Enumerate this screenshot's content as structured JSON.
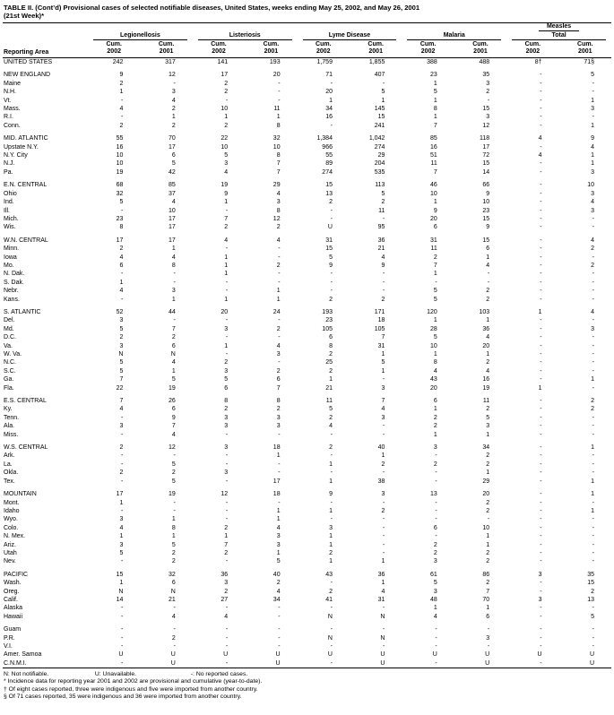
{
  "title": {
    "line1": "TABLE II. (Cont’d) Provisional cases of selected notifiable diseases, United States, weeks ending May 25, 2002, and May 26, 2001",
    "line2": "(21st Week)*"
  },
  "table": {
    "area_header": "Reporting Area",
    "groups": [
      {
        "lines": [
          "Legionellosis"
        ]
      },
      {
        "lines": [
          "Listeriosis"
        ]
      },
      {
        "lines": [
          "Lyme Disease"
        ]
      },
      {
        "lines": [
          "Malaria"
        ]
      },
      {
        "lines": [
          "Measles",
          "Total"
        ]
      }
    ],
    "col_subheader": {
      "line1": "Cum.",
      "years": [
        "2002",
        "2001"
      ]
    },
    "rows": [
      {
        "area": "UNITED STATES",
        "v": [
          "242",
          "317",
          "141",
          "193",
          "1,759",
          "1,855",
          "388",
          "488",
          "8†",
          "71§"
        ]
      },
      {
        "spacer": true
      },
      {
        "area": "NEW ENGLAND",
        "v": [
          "9",
          "12",
          "17",
          "20",
          "71",
          "407",
          "23",
          "35",
          "-",
          "5"
        ]
      },
      {
        "area": "Maine",
        "v": [
          "2",
          "-",
          "2",
          "-",
          "-",
          "-",
          "1",
          "3",
          "-",
          "-"
        ]
      },
      {
        "area": "N.H.",
        "v": [
          "1",
          "3",
          "2",
          "-",
          "20",
          "5",
          "5",
          "2",
          "-",
          "-"
        ]
      },
      {
        "area": "Vt.",
        "v": [
          "-",
          "4",
          "-",
          "-",
          "1",
          "1",
          "1",
          "-",
          "-",
          "1"
        ]
      },
      {
        "area": "Mass.",
        "v": [
          "4",
          "2",
          "10",
          "11",
          "34",
          "145",
          "8",
          "15",
          "-",
          "3"
        ]
      },
      {
        "area": "R.I.",
        "v": [
          "-",
          "1",
          "1",
          "1",
          "16",
          "15",
          "1",
          "3",
          "-",
          "-"
        ]
      },
      {
        "area": "Conn.",
        "v": [
          "2",
          "2",
          "2",
          "8",
          "-",
          "241",
          "7",
          "12",
          "-",
          "1"
        ]
      },
      {
        "spacer": true
      },
      {
        "area": "MID. ATLANTIC",
        "v": [
          "55",
          "70",
          "22",
          "32",
          "1,384",
          "1,042",
          "85",
          "118",
          "4",
          "9"
        ]
      },
      {
        "area": "Upstate N.Y.",
        "v": [
          "16",
          "17",
          "10",
          "10",
          "966",
          "274",
          "16",
          "17",
          "-",
          "4"
        ]
      },
      {
        "area": "N.Y. City",
        "v": [
          "10",
          "6",
          "5",
          "8",
          "55",
          "29",
          "51",
          "72",
          "4",
          "1"
        ]
      },
      {
        "area": "N.J.",
        "v": [
          "10",
          "5",
          "3",
          "7",
          "89",
          "204",
          "11",
          "15",
          "-",
          "1"
        ]
      },
      {
        "area": "Pa.",
        "v": [
          "19",
          "42",
          "4",
          "7",
          "274",
          "535",
          "7",
          "14",
          "-",
          "3"
        ]
      },
      {
        "spacer": true
      },
      {
        "area": "E.N. CENTRAL",
        "v": [
          "68",
          "85",
          "19",
          "29",
          "15",
          "113",
          "46",
          "66",
          "-",
          "10"
        ]
      },
      {
        "area": "Ohio",
        "v": [
          "32",
          "37",
          "9",
          "4",
          "13",
          "5",
          "10",
          "9",
          "-",
          "3"
        ]
      },
      {
        "area": "Ind.",
        "v": [
          "5",
          "4",
          "1",
          "3",
          "2",
          "2",
          "1",
          "10",
          "-",
          "4"
        ]
      },
      {
        "area": "Ill.",
        "v": [
          "-",
          "10",
          "-",
          "8",
          "-",
          "11",
          "9",
          "23",
          "-",
          "3"
        ]
      },
      {
        "area": "Mich.",
        "v": [
          "23",
          "17",
          "7",
          "12",
          "-",
          "-",
          "20",
          "15",
          "-",
          "-"
        ]
      },
      {
        "area": "Wis.",
        "v": [
          "8",
          "17",
          "2",
          "2",
          "U",
          "95",
          "6",
          "9",
          "-",
          "-"
        ]
      },
      {
        "spacer": true
      },
      {
        "area": "W.N. CENTRAL",
        "v": [
          "17",
          "17",
          "4",
          "4",
          "31",
          "36",
          "31",
          "15",
          "-",
          "4"
        ]
      },
      {
        "area": "Minn.",
        "v": [
          "2",
          "1",
          "-",
          "-",
          "15",
          "21",
          "11",
          "6",
          "-",
          "2"
        ]
      },
      {
        "area": "Iowa",
        "v": [
          "4",
          "4",
          "1",
          "-",
          "5",
          "4",
          "2",
          "1",
          "-",
          "-"
        ]
      },
      {
        "area": "Mo.",
        "v": [
          "6",
          "8",
          "1",
          "2",
          "9",
          "9",
          "7",
          "4",
          "-",
          "2"
        ]
      },
      {
        "area": "N. Dak.",
        "v": [
          "-",
          "-",
          "1",
          "-",
          "-",
          "-",
          "1",
          "-",
          "-",
          "-"
        ]
      },
      {
        "area": "S. Dak.",
        "v": [
          "1",
          "-",
          "-",
          "-",
          "-",
          "-",
          "-",
          "-",
          "-",
          "-"
        ]
      },
      {
        "area": "Nebr.",
        "v": [
          "4",
          "3",
          "-",
          "1",
          "-",
          "-",
          "5",
          "2",
          "-",
          "-"
        ]
      },
      {
        "area": "Kans.",
        "v": [
          "-",
          "1",
          "1",
          "1",
          "2",
          "2",
          "5",
          "2",
          "-",
          "-"
        ]
      },
      {
        "spacer": true
      },
      {
        "area": "S. ATLANTIC",
        "v": [
          "52",
          "44",
          "20",
          "24",
          "193",
          "171",
          "120",
          "103",
          "1",
          "4"
        ]
      },
      {
        "area": "Del.",
        "v": [
          "3",
          "-",
          "-",
          "-",
          "23",
          "18",
          "1",
          "1",
          "-",
          "-"
        ]
      },
      {
        "area": "Md.",
        "v": [
          "5",
          "7",
          "3",
          "2",
          "105",
          "105",
          "28",
          "36",
          "-",
          "3"
        ]
      },
      {
        "area": "D.C.",
        "v": [
          "2",
          "2",
          "-",
          "-",
          "6",
          "7",
          "5",
          "4",
          "-",
          "-"
        ]
      },
      {
        "area": "Va.",
        "v": [
          "3",
          "6",
          "1",
          "4",
          "8",
          "31",
          "10",
          "20",
          "-",
          "-"
        ]
      },
      {
        "area": "W. Va.",
        "v": [
          "N",
          "N",
          "-",
          "3",
          "2",
          "1",
          "1",
          "1",
          "-",
          "-"
        ]
      },
      {
        "area": "N.C.",
        "v": [
          "5",
          "4",
          "2",
          "-",
          "25",
          "5",
          "8",
          "2",
          "-",
          "-"
        ]
      },
      {
        "area": "S.C.",
        "v": [
          "5",
          "1",
          "3",
          "2",
          "2",
          "1",
          "4",
          "4",
          "-",
          "-"
        ]
      },
      {
        "area": "Ga.",
        "v": [
          "7",
          "5",
          "5",
          "6",
          "1",
          "-",
          "43",
          "16",
          "-",
          "1"
        ]
      },
      {
        "area": "Fla.",
        "v": [
          "22",
          "19",
          "6",
          "7",
          "21",
          "3",
          "20",
          "19",
          "1",
          "-"
        ]
      },
      {
        "spacer": true
      },
      {
        "area": "E.S. CENTRAL",
        "v": [
          "7",
          "26",
          "8",
          "8",
          "11",
          "7",
          "6",
          "11",
          "-",
          "2"
        ]
      },
      {
        "area": "Ky.",
        "v": [
          "4",
          "6",
          "2",
          "2",
          "5",
          "4",
          "1",
          "2",
          "-",
          "2"
        ]
      },
      {
        "area": "Tenn.",
        "v": [
          "-",
          "9",
          "3",
          "3",
          "2",
          "3",
          "2",
          "5",
          "-",
          "-"
        ]
      },
      {
        "area": "Ala.",
        "v": [
          "3",
          "7",
          "3",
          "3",
          "4",
          "-",
          "2",
          "3",
          "-",
          "-"
        ]
      },
      {
        "area": "Miss.",
        "v": [
          "-",
          "4",
          "-",
          "-",
          "-",
          "-",
          "1",
          "1",
          "-",
          "-"
        ]
      },
      {
        "spacer": true
      },
      {
        "area": "W.S. CENTRAL",
        "v": [
          "2",
          "12",
          "3",
          "18",
          "2",
          "40",
          "3",
          "34",
          "-",
          "1"
        ]
      },
      {
        "area": "Ark.",
        "v": [
          "-",
          "-",
          "-",
          "1",
          "-",
          "1",
          "-",
          "2",
          "-",
          "-"
        ]
      },
      {
        "area": "La.",
        "v": [
          "-",
          "5",
          "-",
          "-",
          "1",
          "2",
          "2",
          "2",
          "-",
          "-"
        ]
      },
      {
        "area": "Okla.",
        "v": [
          "2",
          "2",
          "3",
          "-",
          "-",
          "-",
          "-",
          "1",
          "-",
          "-"
        ]
      },
      {
        "area": "Tex.",
        "v": [
          "-",
          "5",
          "-",
          "17",
          "1",
          "38",
          "-",
          "29",
          "-",
          "1"
        ]
      },
      {
        "spacer": true
      },
      {
        "area": "MOUNTAIN",
        "v": [
          "17",
          "19",
          "12",
          "18",
          "9",
          "3",
          "13",
          "20",
          "-",
          "1"
        ]
      },
      {
        "area": "Mont.",
        "v": [
          "1",
          "-",
          "-",
          "-",
          "-",
          "-",
          "-",
          "2",
          "-",
          "-"
        ]
      },
      {
        "area": "Idaho",
        "v": [
          "-",
          "-",
          "-",
          "1",
          "1",
          "2",
          "-",
          "2",
          "-",
          "1"
        ]
      },
      {
        "area": "Wyo.",
        "v": [
          "3",
          "1",
          "-",
          "1",
          "-",
          "-",
          "-",
          "-",
          "-",
          "-"
        ]
      },
      {
        "area": "Colo.",
        "v": [
          "4",
          "8",
          "2",
          "4",
          "3",
          "-",
          "6",
          "10",
          "-",
          "-"
        ]
      },
      {
        "area": "N. Mex.",
        "v": [
          "1",
          "1",
          "1",
          "3",
          "1",
          "-",
          "-",
          "1",
          "-",
          "-"
        ]
      },
      {
        "area": "Ariz.",
        "v": [
          "3",
          "5",
          "7",
          "3",
          "1",
          "-",
          "2",
          "1",
          "-",
          "-"
        ]
      },
      {
        "area": "Utah",
        "v": [
          "5",
          "2",
          "2",
          "1",
          "2",
          "-",
          "2",
          "2",
          "-",
          "-"
        ]
      },
      {
        "area": "Nev.",
        "v": [
          "-",
          "2",
          "-",
          "5",
          "1",
          "1",
          "3",
          "2",
          "-",
          "-"
        ]
      },
      {
        "spacer": true
      },
      {
        "area": "PACIFIC",
        "v": [
          "15",
          "32",
          "36",
          "40",
          "43",
          "36",
          "61",
          "86",
          "3",
          "35"
        ]
      },
      {
        "area": "Wash.",
        "v": [
          "1",
          "6",
          "3",
          "2",
          "-",
          "1",
          "5",
          "2",
          "-",
          "15"
        ]
      },
      {
        "area": "Oreg.",
        "v": [
          "N",
          "N",
          "2",
          "4",
          "2",
          "4",
          "3",
          "7",
          "-",
          "2"
        ]
      },
      {
        "area": "Calif.",
        "v": [
          "14",
          "21",
          "27",
          "34",
          "41",
          "31",
          "48",
          "70",
          "3",
          "13"
        ]
      },
      {
        "area": "Alaska",
        "v": [
          "-",
          "-",
          "-",
          "-",
          "-",
          "-",
          "1",
          "1",
          "-",
          "-"
        ]
      },
      {
        "area": "Hawaii",
        "v": [
          "-",
          "4",
          "4",
          "-",
          "N",
          "N",
          "4",
          "6",
          "-",
          "5"
        ]
      },
      {
        "spacer": true
      },
      {
        "area": "Guam",
        "v": [
          "-",
          "-",
          "-",
          "-",
          "-",
          "-",
          "-",
          "-",
          "-",
          "-"
        ]
      },
      {
        "area": "P.R.",
        "v": [
          "-",
          "2",
          "-",
          "-",
          "N",
          "N",
          "-",
          "3",
          "-",
          "-"
        ]
      },
      {
        "area": "V.I.",
        "v": [
          "-",
          "-",
          "-",
          "-",
          "-",
          "-",
          "-",
          "-",
          "-",
          "-"
        ]
      },
      {
        "area": "Amer. Samoa",
        "v": [
          "U",
          "U",
          "U",
          "U",
          "U",
          "U",
          "U",
          "U",
          "U",
          "U"
        ]
      },
      {
        "area": "C.N.M.I.",
        "v": [
          "-",
          "U",
          "-",
          "U",
          "-",
          "U",
          "-",
          "U",
          "-",
          "U"
        ]
      }
    ]
  },
  "footnotes": {
    "legend": [
      "N: Not notifiable.",
      "U: Unavailable.",
      "-: No reported cases."
    ],
    "notes": [
      "* Incidence data for reporting year 2001 and 2002 are provisional and cumulative (year-to-date).",
      "† Of eight cases reported, three were indigenous and five were imported from another country.",
      "§ Of 71 cases reported, 35 were indigenous and 36 were imported from another country."
    ]
  }
}
